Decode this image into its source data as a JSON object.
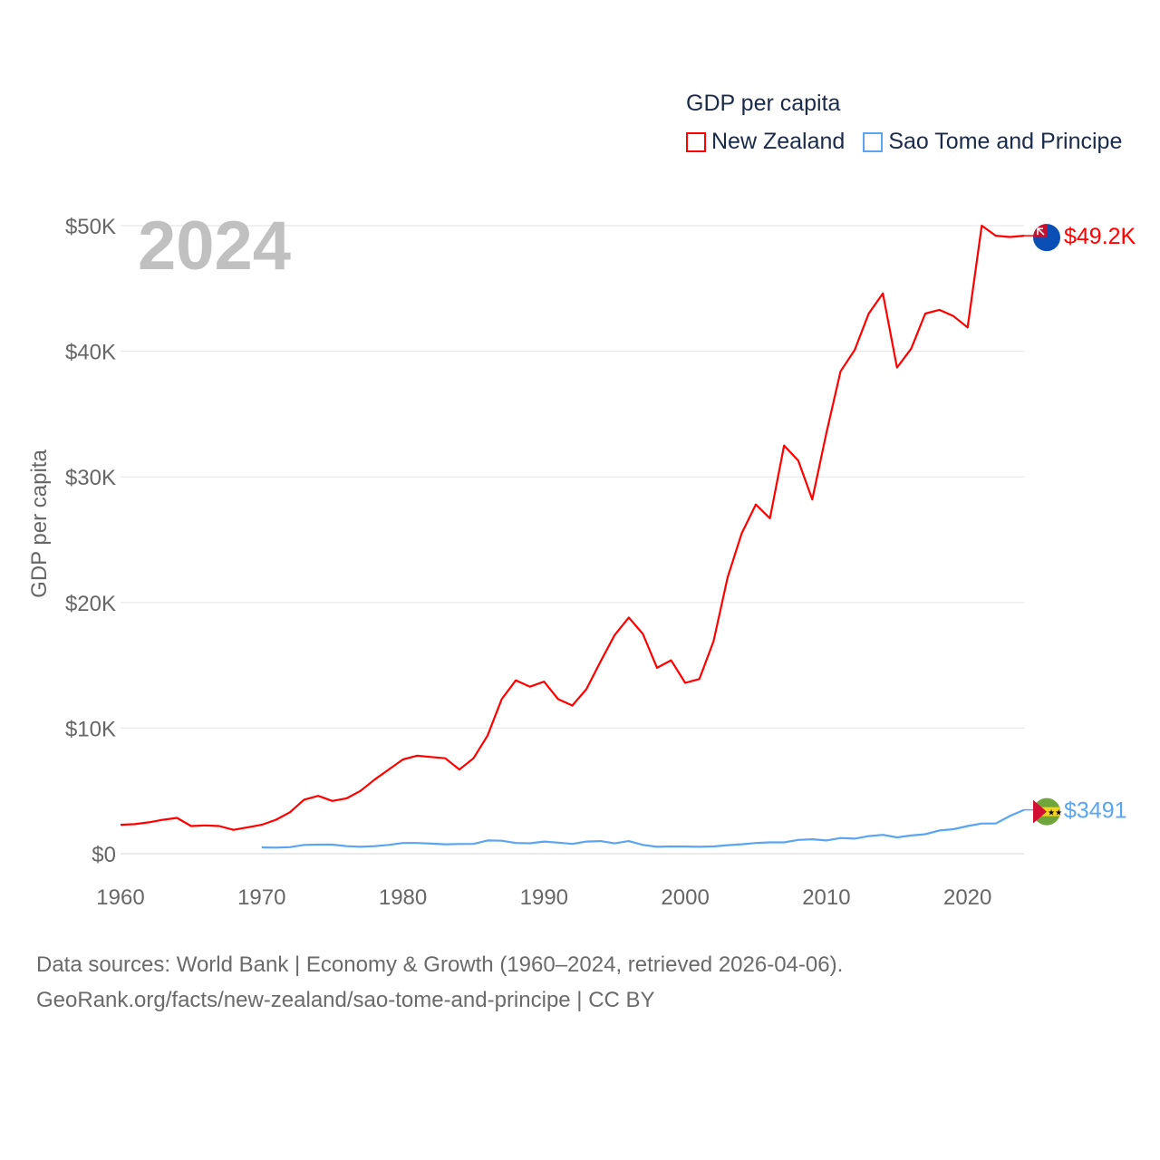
{
  "year_label": "2024",
  "footer": {
    "line1": "Data sources: World Bank | Economy & Growth (1960–2024, retrieved 2026-04-06).",
    "line2": "GeoRank.org/facts/new-zealand/sao-tome-and-principe | CC BY"
  },
  "chart_data": {
    "type": "line",
    "title": "GDP per capita",
    "ylabel": "GDP per capita",
    "xlabel": "",
    "xlim": [
      1960,
      2024
    ],
    "ylim": [
      0,
      50000
    ],
    "grid": true,
    "legend_placement": "top-right",
    "x_ticks": [
      "1960",
      "1970",
      "1980",
      "1990",
      "2000",
      "2010",
      "2020"
    ],
    "y_ticks": [
      {
        "value": 0,
        "label": "$0"
      },
      {
        "value": 10000,
        "label": "$10K"
      },
      {
        "value": 20000,
        "label": "$20K"
      },
      {
        "value": 30000,
        "label": "$30K"
      },
      {
        "value": 40000,
        "label": "$40K"
      },
      {
        "value": 50000,
        "label": "$50K"
      }
    ],
    "series": [
      {
        "name": "New Zealand",
        "color": "#ff0000",
        "end_label": "$49.2K",
        "start_year": 1960,
        "values": [
          2300,
          2350,
          2500,
          2700,
          2850,
          2200,
          2250,
          2200,
          1900,
          2100,
          2300,
          2700,
          3300,
          4300,
          4600,
          4200,
          4400,
          5000,
          5900,
          6700,
          7500,
          7800,
          7700,
          7600,
          6700,
          7600,
          9400,
          12300,
          13800,
          13300,
          13700,
          12300,
          11800,
          13100,
          15300,
          17400,
          18800,
          17500,
          14800,
          15400,
          13600,
          13900,
          16900,
          22000,
          25500,
          27800,
          26700,
          32500,
          31300,
          28200,
          33500,
          38400,
          40100,
          43000,
          44600,
          38700,
          40200,
          43000,
          43300,
          42800,
          41900,
          50000,
          49200,
          49100,
          49200
        ]
      },
      {
        "name": "Sao Tome and Principe",
        "color": "#5aa5f0",
        "end_label": "$3491",
        "start_year": 1970,
        "values": [
          500,
          480,
          520,
          700,
          720,
          720,
          600,
          550,
          600,
          700,
          850,
          850,
          800,
          750,
          770,
          780,
          1050,
          1030,
          850,
          830,
          970,
          880,
          780,
          970,
          1000,
          820,
          1000,
          700,
          550,
          580,
          570,
          550,
          580,
          680,
          750,
          850,
          900,
          900,
          1100,
          1150,
          1050,
          1250,
          1200,
          1400,
          1500,
          1300,
          1450,
          1550,
          1850,
          1950,
          2200,
          2400,
          2400,
          3000,
          3491
        ]
      }
    ]
  }
}
